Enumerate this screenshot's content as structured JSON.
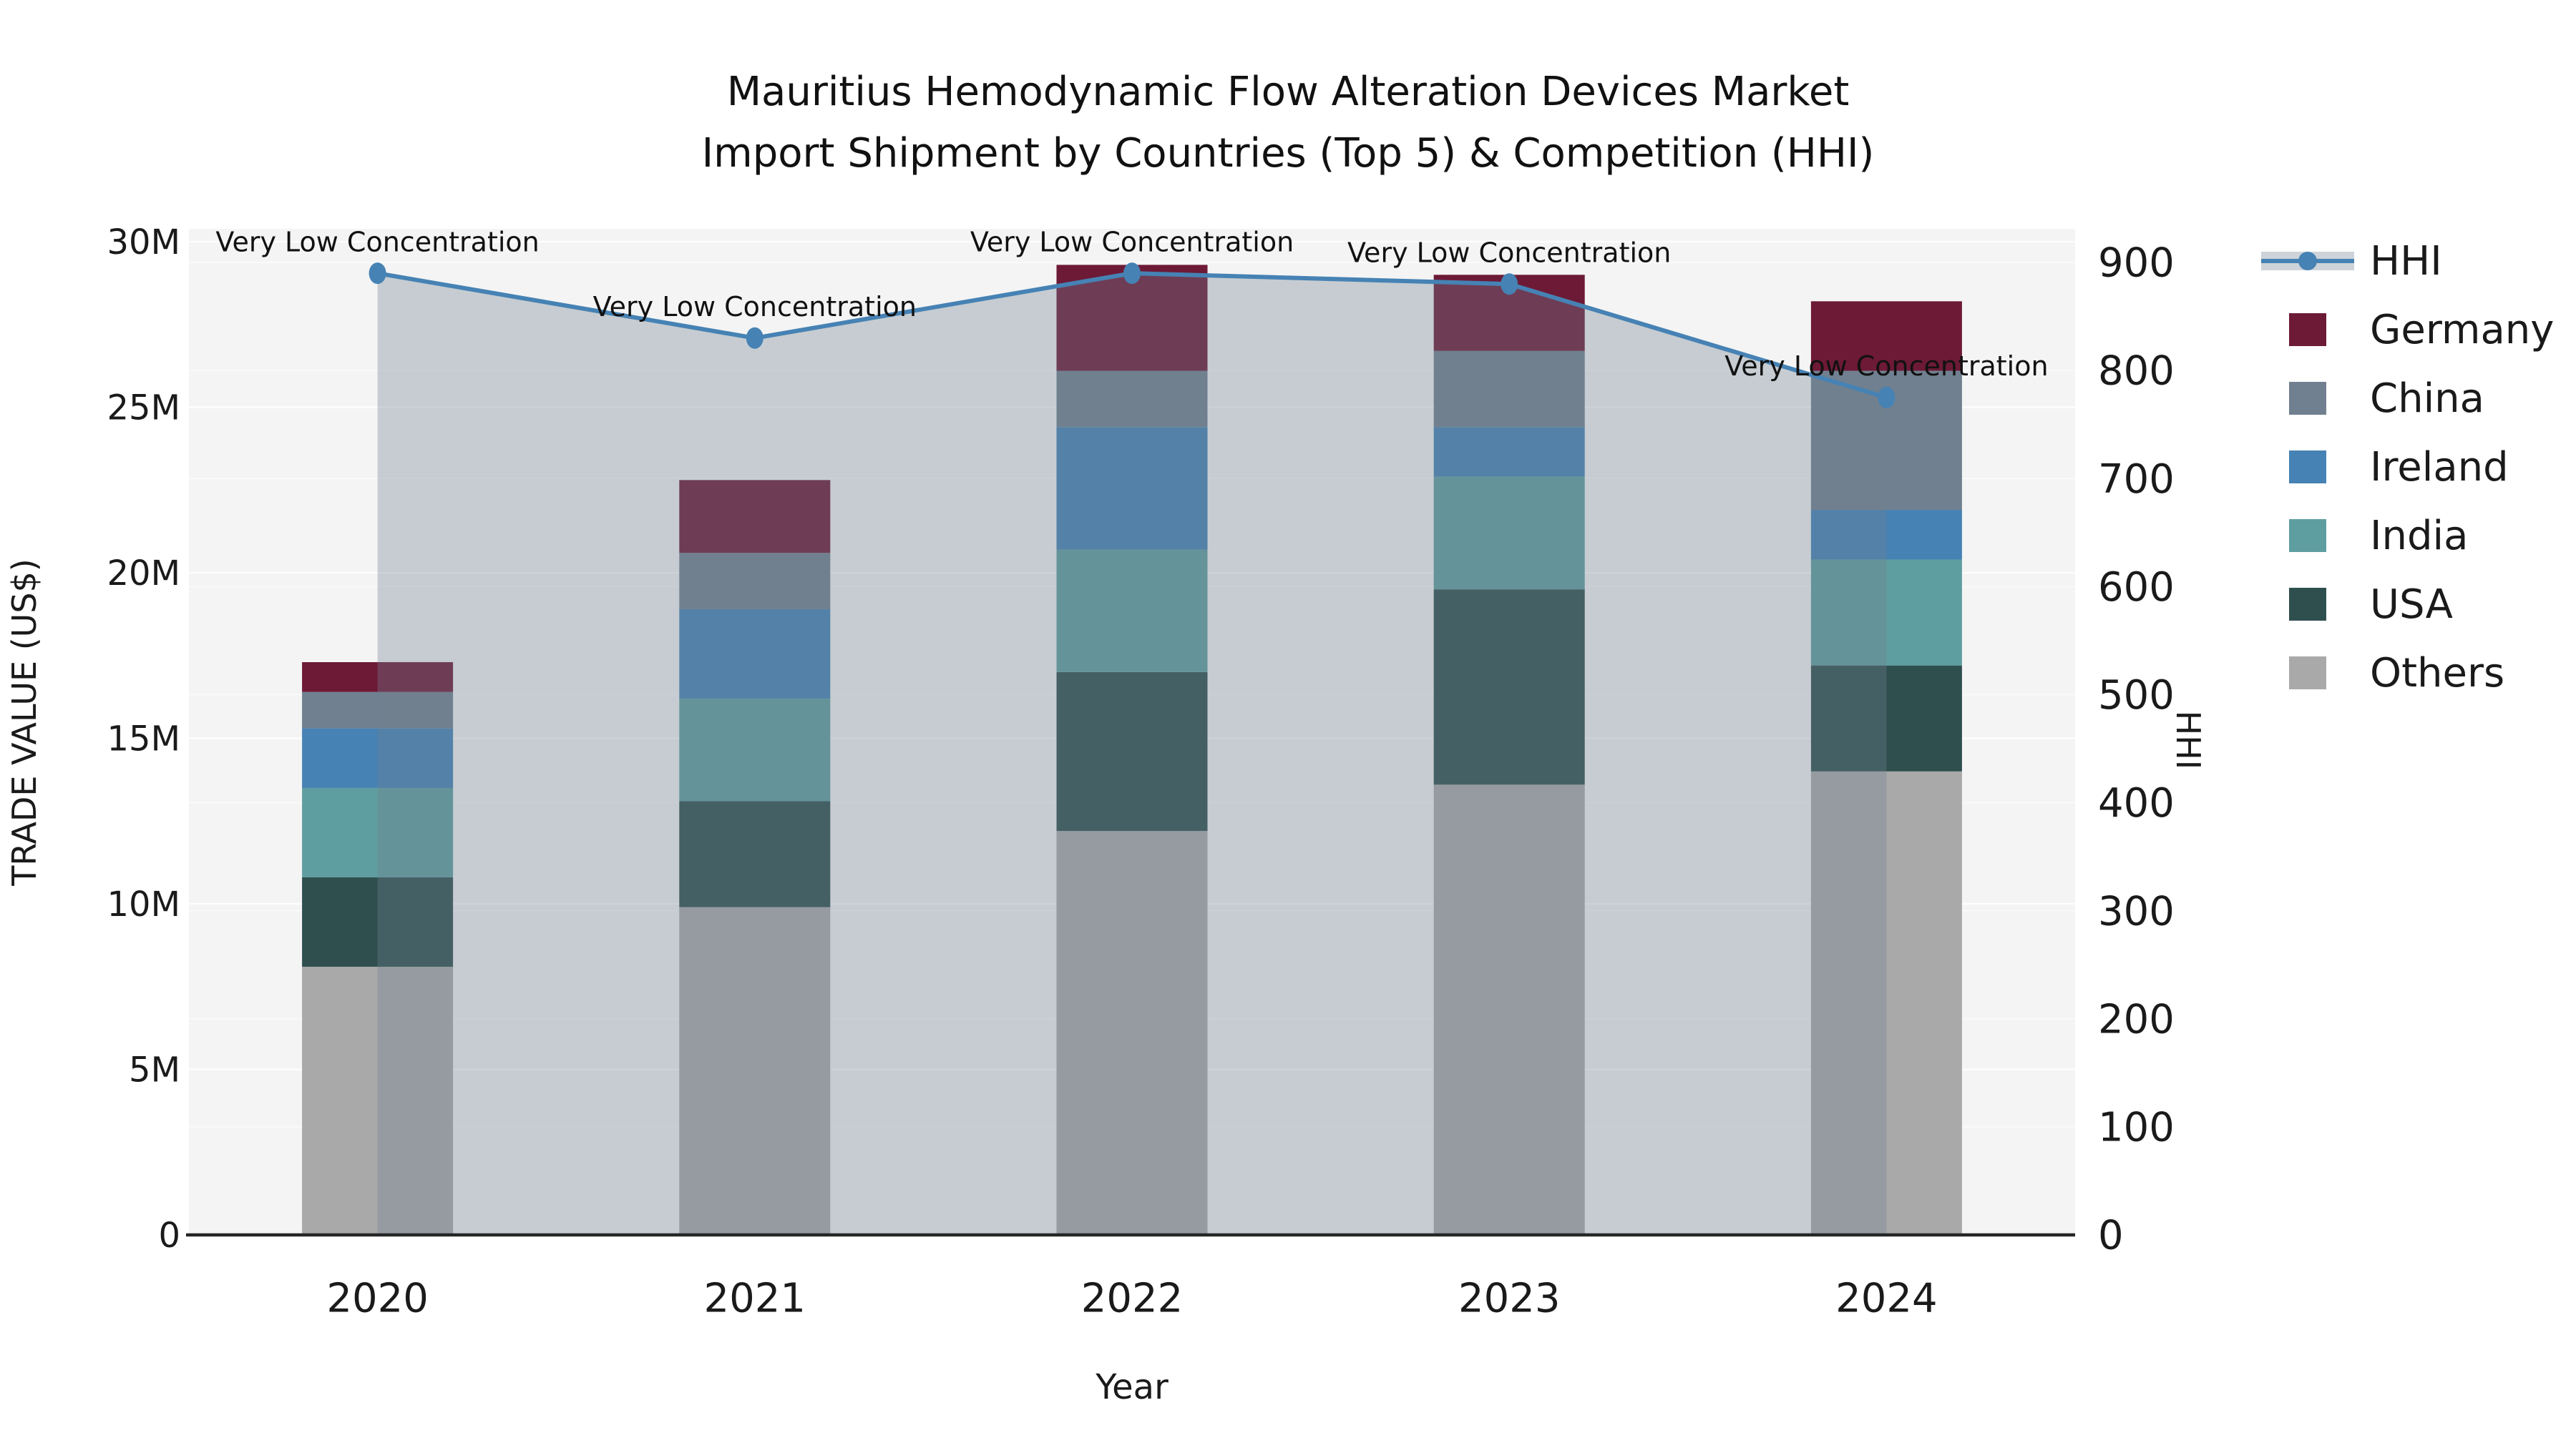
{
  "title": {
    "line1": "Mauritius Hemodynamic Flow Alteration Devices Market",
    "line2": "Import Shipment by Countries (Top 5) & Competition (HHI)"
  },
  "axes": {
    "x_label": "Year",
    "y_left_label": "TRADE VALUE (US$)",
    "y_right_label": "HHI",
    "y_left_tick_labels": [
      "0",
      "5M",
      "10M",
      "15M",
      "20M",
      "25M",
      "30M"
    ],
    "y_right_tick_labels": [
      "0",
      "100",
      "200",
      "300",
      "400",
      "500",
      "600",
      "700",
      "800",
      "900"
    ]
  },
  "chart_data": {
    "type": "bar",
    "stacked": true,
    "grid": true,
    "legend_position": "right",
    "categories": [
      "2020",
      "2021",
      "2022",
      "2023",
      "2024"
    ],
    "unit": "USD millions (left axis), HHI index (right axis)",
    "y_left_range_musd": [
      0,
      30
    ],
    "y_right_range": [
      0,
      900
    ],
    "series": [
      {
        "name": "Others",
        "color": "#a9a9a9",
        "values_musd": [
          8.1,
          9.9,
          12.2,
          13.6,
          14.0
        ]
      },
      {
        "name": "USA",
        "color": "#2f4f4f",
        "values_musd": [
          2.7,
          3.2,
          4.8,
          5.9,
          3.2
        ]
      },
      {
        "name": "India",
        "color": "#5f9ea0",
        "values_musd": [
          2.7,
          3.1,
          3.7,
          3.4,
          3.2
        ]
      },
      {
        "name": "Ireland",
        "color": "#4682b4",
        "values_musd": [
          1.8,
          2.7,
          3.7,
          1.5,
          1.5
        ]
      },
      {
        "name": "China",
        "color": "#708090",
        "values_musd": [
          1.1,
          1.7,
          1.7,
          2.3,
          4.2
        ]
      },
      {
        "name": "Germany",
        "color": "#6d1a36",
        "values_musd": [
          0.9,
          2.2,
          3.2,
          2.3,
          2.1
        ]
      }
    ],
    "bar_totals_musd": [
      17.3,
      22.8,
      29.3,
      29.0,
      28.2
    ],
    "line_series": {
      "name": "HHI",
      "axis": "right",
      "color": "#4682b4",
      "area_fill_color": "rgba(112,128,144,0.35)",
      "values": [
        890,
        830,
        890,
        880,
        775
      ]
    },
    "annotations": [
      {
        "category": "2020",
        "text": "Very Low Concentration"
      },
      {
        "category": "2021",
        "text": "Very Low Concentration"
      },
      {
        "category": "2022",
        "text": "Very Low Concentration"
      },
      {
        "category": "2023",
        "text": "Very Low Concentration"
      },
      {
        "category": "2024",
        "text": "Very Low Concentration"
      }
    ]
  },
  "legend": {
    "items": [
      {
        "label": "HHI",
        "type": "line",
        "color": "#4682b4",
        "band_color": "#cdd3d8"
      },
      {
        "label": "Germany",
        "type": "swatch",
        "color": "#6d1a36"
      },
      {
        "label": "China",
        "type": "swatch",
        "color": "#708090"
      },
      {
        "label": "Ireland",
        "type": "swatch",
        "color": "#4682b4"
      },
      {
        "label": "India",
        "type": "swatch",
        "color": "#5f9ea0"
      },
      {
        "label": "USA",
        "type": "swatch",
        "color": "#2f4f4f"
      },
      {
        "label": "Others",
        "type": "swatch",
        "color": "#a9a9a9"
      }
    ]
  },
  "plot_style": {
    "plot_bg": "#f4f4f4",
    "grid_color": "#ffffff",
    "axis_line_color": "#262626",
    "text_color": "#1a1a1a"
  }
}
